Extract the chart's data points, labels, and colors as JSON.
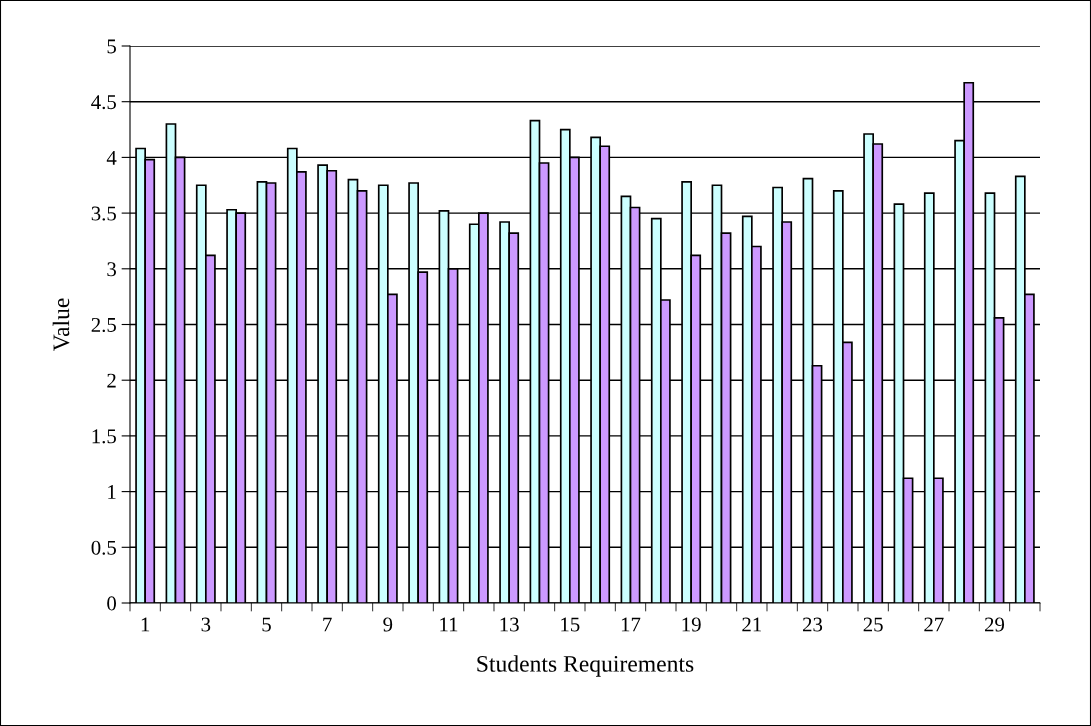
{
  "chart_data": {
    "type": "bar",
    "xlabel": "Students Requirements",
    "ylabel": "Value",
    "categories": [
      "1",
      null,
      "3",
      null,
      "5",
      null,
      "7",
      null,
      "9",
      null,
      "11",
      null,
      "13",
      null,
      "15",
      null,
      "17",
      null,
      "19",
      null,
      "21",
      null,
      "23",
      null,
      "25",
      null,
      "27",
      null,
      "29",
      null
    ],
    "series": [
      {
        "color": "#ccffff",
        "values": [
          4.08,
          4.3,
          3.75,
          3.53,
          3.78,
          4.08,
          3.93,
          3.8,
          3.75,
          3.77,
          3.52,
          3.4,
          3.42,
          4.33,
          4.25,
          4.18,
          3.65,
          3.45,
          3.78,
          3.75,
          3.47,
          3.73,
          3.81,
          3.7,
          4.21,
          3.58,
          3.68,
          4.15,
          3.68,
          3.83
        ]
      },
      {
        "color": "#cc99ff",
        "values": [
          3.98,
          4.0,
          3.12,
          3.5,
          3.77,
          3.87,
          3.88,
          3.7,
          2.77,
          2.97,
          3.0,
          3.5,
          3.32,
          3.95,
          4.0,
          4.1,
          3.55,
          2.72,
          3.12,
          3.32,
          3.2,
          3.42,
          2.13,
          2.34,
          4.12,
          1.12,
          1.12,
          4.67,
          2.56,
          2.77
        ]
      }
    ],
    "ylim": [
      0,
      5
    ],
    "yticks": [
      0,
      0.5,
      1,
      1.5,
      2,
      2.5,
      3,
      3.5,
      4,
      4.5,
      5
    ],
    "grid": "y"
  }
}
